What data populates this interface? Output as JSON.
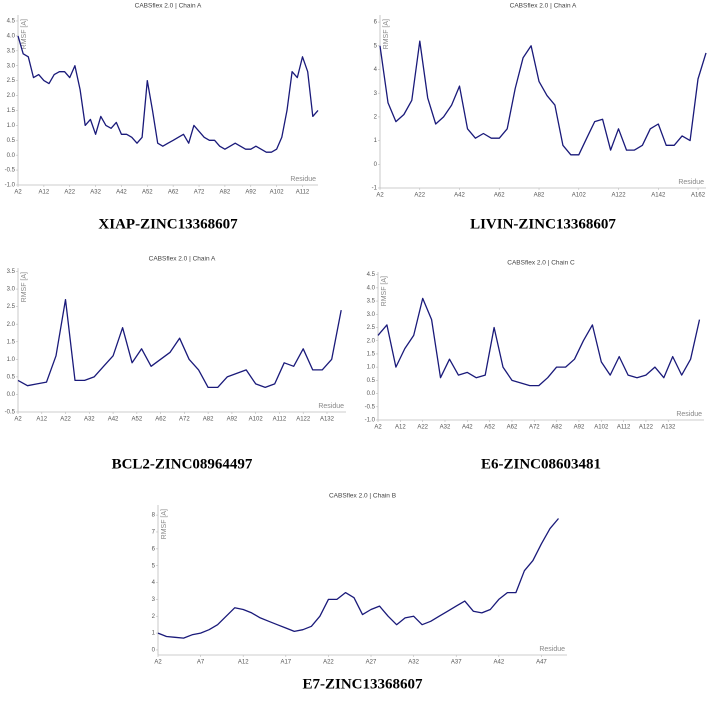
{
  "chart_data": [
    {
      "type": "line",
      "title": "CABSflex 2.0 | Chain A",
      "caption": "XIAP-ZINC13368607",
      "ylabel": "RMSF [A]",
      "xlabel": "Residue",
      "color": "#1a1a7a",
      "x": [
        2,
        4,
        6,
        8,
        10,
        12,
        14,
        16,
        18,
        20,
        22,
        24,
        26,
        28,
        30,
        32,
        34,
        36,
        38,
        40,
        42,
        44,
        46,
        48,
        50,
        52,
        54,
        56,
        58,
        60,
        62,
        64,
        66,
        68,
        70,
        72,
        74,
        76,
        78,
        80,
        82,
        84,
        86,
        88,
        90,
        92,
        94,
        96,
        98,
        100,
        102,
        104,
        106,
        108,
        110,
        112,
        114,
        116,
        118
      ],
      "values": [
        4.0,
        3.4,
        3.3,
        2.6,
        2.7,
        2.5,
        2.4,
        2.7,
        2.8,
        2.8,
        2.6,
        3.0,
        2.2,
        1.0,
        1.2,
        0.7,
        1.3,
        1.0,
        0.9,
        1.1,
        0.7,
        0.7,
        0.6,
        0.4,
        0.6,
        2.5,
        1.5,
        0.4,
        0.3,
        0.4,
        0.5,
        0.6,
        0.7,
        0.4,
        1.0,
        0.8,
        0.6,
        0.5,
        0.5,
        0.3,
        0.2,
        0.3,
        0.4,
        0.3,
        0.2,
        0.2,
        0.3,
        0.2,
        0.1,
        0.1,
        0.2,
        0.6,
        1.5,
        2.8,
        2.6,
        3.3,
        2.8,
        1.3,
        1.5
      ],
      "xlim": [
        2,
        118
      ],
      "ylim": [
        -1,
        4.7
      ],
      "xticks": [
        {
          "value": 2,
          "label": "A2"
        },
        {
          "value": 12,
          "label": "A12"
        },
        {
          "value": 22,
          "label": "A22"
        },
        {
          "value": 32,
          "label": "A32"
        },
        {
          "value": 42,
          "label": "A42"
        },
        {
          "value": 52,
          "label": "A52"
        },
        {
          "value": 62,
          "label": "A62"
        },
        {
          "value": 72,
          "label": "A72"
        },
        {
          "value": 82,
          "label": "A82"
        },
        {
          "value": 92,
          "label": "A92"
        },
        {
          "value": 102,
          "label": "A102"
        },
        {
          "value": 112,
          "label": "A112"
        }
      ],
      "yticks": [
        {
          "value": -1,
          "label": "-1.0"
        },
        -0.5,
        {
          "value": 0,
          "label": "0.0"
        },
        0.5,
        {
          "value": 1,
          "label": "1.0"
        },
        1.5,
        {
          "value": 2,
          "label": "2.0"
        },
        2.5,
        {
          "value": 3,
          "label": "3.0"
        },
        3.5,
        {
          "value": 4,
          "label": "4.0"
        },
        4.5
      ]
    },
    {
      "type": "line",
      "title": "CABSflex 2.0 | Chain A",
      "caption": "LIVIN-ZINC13368607",
      "ylabel": "RMSF [A]",
      "xlabel": "Residue",
      "color": "#1a1a7a",
      "x": [
        2,
        6,
        10,
        14,
        18,
        22,
        26,
        30,
        34,
        38,
        42,
        46,
        50,
        54,
        58,
        62,
        66,
        70,
        74,
        78,
        82,
        86,
        90,
        94,
        98,
        102,
        106,
        110,
        114,
        118,
        122,
        126,
        130,
        134,
        138,
        142,
        146,
        150,
        154,
        158,
        162,
        166
      ],
      "values": [
        5.0,
        2.6,
        1.8,
        2.1,
        2.7,
        5.2,
        2.8,
        1.7,
        2.0,
        2.5,
        3.3,
        1.5,
        1.1,
        1.3,
        1.1,
        1.1,
        1.5,
        3.2,
        4.5,
        5.0,
        3.5,
        2.9,
        2.5,
        0.8,
        0.4,
        0.4,
        1.1,
        1.8,
        1.9,
        0.6,
        1.5,
        0.6,
        0.6,
        0.8,
        1.5,
        1.7,
        0.8,
        0.8,
        1.2,
        1.0,
        3.6,
        4.7
      ],
      "xlim": [
        2,
        166
      ],
      "ylim": [
        -1,
        6.3
      ],
      "xticks": [
        {
          "value": 2,
          "label": "A2"
        },
        {
          "value": 22,
          "label": "A22"
        },
        {
          "value": 42,
          "label": "A42"
        },
        {
          "value": 62,
          "label": "A62"
        },
        {
          "value": 82,
          "label": "A82"
        },
        {
          "value": 102,
          "label": "A102"
        },
        {
          "value": 122,
          "label": "A122"
        },
        {
          "value": 142,
          "label": "A142"
        },
        {
          "value": 162,
          "label": "A162"
        }
      ],
      "yticks": [
        -1,
        0,
        1,
        2,
        3,
        4,
        5,
        6
      ]
    },
    {
      "type": "line",
      "title": "CABSflex 2.0 | Chain A",
      "caption": "BCL2-ZINC08964497",
      "ylabel": "RMSF [A]",
      "xlabel": "Residue",
      "color": "#1a1a7a",
      "x": [
        2,
        6,
        10,
        14,
        18,
        22,
        26,
        30,
        34,
        38,
        42,
        46,
        50,
        54,
        58,
        62,
        66,
        70,
        74,
        78,
        82,
        86,
        90,
        94,
        98,
        102,
        106,
        110,
        114,
        118,
        122,
        126,
        130,
        134,
        138
      ],
      "values": [
        0.4,
        0.25,
        0.3,
        0.35,
        1.1,
        2.7,
        0.4,
        0.4,
        0.5,
        0.8,
        1.1,
        1.9,
        0.9,
        1.3,
        0.8,
        1.0,
        1.2,
        1.6,
        1.0,
        0.7,
        0.2,
        0.2,
        0.5,
        0.6,
        0.7,
        0.3,
        0.2,
        0.3,
        0.9,
        0.8,
        1.3,
        0.7,
        0.7,
        1.0,
        2.4
      ],
      "xlim": [
        2,
        140
      ],
      "ylim": [
        -0.5,
        3.6
      ],
      "xticks": [
        {
          "value": 2,
          "label": "A2"
        },
        {
          "value": 12,
          "label": "A12"
        },
        {
          "value": 22,
          "label": "A22"
        },
        {
          "value": 32,
          "label": "A32"
        },
        {
          "value": 42,
          "label": "A42"
        },
        {
          "value": 52,
          "label": "A52"
        },
        {
          "value": 62,
          "label": "A62"
        },
        {
          "value": 72,
          "label": "A72"
        },
        {
          "value": 82,
          "label": "A82"
        },
        {
          "value": 92,
          "label": "A92"
        },
        {
          "value": 102,
          "label": "A102"
        },
        {
          "value": 112,
          "label": "A112"
        },
        {
          "value": 122,
          "label": "A122"
        },
        {
          "value": 132,
          "label": "A132"
        }
      ],
      "yticks": [
        -0.5,
        {
          "value": 0,
          "label": "0.0"
        },
        0.5,
        {
          "value": 1,
          "label": "1.0"
        },
        1.5,
        {
          "value": 2,
          "label": "2.0"
        },
        2.5,
        {
          "value": 3,
          "label": "3.0"
        },
        3.5
      ]
    },
    {
      "type": "line",
      "title": "CABSflex 2.0 | Chain C",
      "caption": "E6-ZINC08603481",
      "ylabel": "RMSF [A]",
      "xlabel": "Residue",
      "color": "#1a1a7a",
      "x": [
        2,
        6,
        10,
        14,
        18,
        22,
        26,
        30,
        34,
        38,
        42,
        46,
        50,
        54,
        58,
        62,
        66,
        70,
        74,
        78,
        82,
        86,
        90,
        94,
        98,
        102,
        106,
        110,
        114,
        118,
        122,
        126,
        130,
        134,
        138,
        142,
        146
      ],
      "values": [
        2.2,
        2.6,
        1.0,
        1.7,
        2.2,
        3.6,
        2.8,
        0.6,
        1.3,
        0.7,
        0.8,
        0.6,
        0.7,
        2.5,
        1.0,
        0.5,
        0.4,
        0.3,
        0.3,
        0.6,
        1.0,
        1.0,
        1.3,
        2.0,
        2.6,
        1.2,
        0.7,
        1.4,
        0.7,
        0.6,
        0.7,
        1.0,
        0.6,
        1.4,
        0.7,
        1.3,
        2.8
      ],
      "xlim": [
        2,
        148
      ],
      "ylim": [
        -1,
        4.6
      ],
      "xticks": [
        {
          "value": 2,
          "label": "A2"
        },
        {
          "value": 12,
          "label": "A12"
        },
        {
          "value": 22,
          "label": "A22"
        },
        {
          "value": 32,
          "label": "A32"
        },
        {
          "value": 42,
          "label": "A42"
        },
        {
          "value": 52,
          "label": "A52"
        },
        {
          "value": 62,
          "label": "A62"
        },
        {
          "value": 72,
          "label": "A72"
        },
        {
          "value": 82,
          "label": "A82"
        },
        {
          "value": 92,
          "label": "A92"
        },
        {
          "value": 102,
          "label": "A102"
        },
        {
          "value": 112,
          "label": "A112"
        },
        {
          "value": 122,
          "label": "A122"
        },
        {
          "value": 132,
          "label": "A132"
        }
      ],
      "yticks": [
        {
          "value": -1,
          "label": "-1.0"
        },
        -0.5,
        {
          "value": 0,
          "label": "0.0"
        },
        0.5,
        {
          "value": 1,
          "label": "1.0"
        },
        1.5,
        {
          "value": 2,
          "label": "2.0"
        },
        2.5,
        {
          "value": 3,
          "label": "3.0"
        },
        3.5,
        {
          "value": 4,
          "label": "4.0"
        },
        4.5
      ]
    },
    {
      "type": "line",
      "title": "CABSflex 2.0 | Chain B",
      "caption": "E7-ZINC13368607",
      "ylabel": "RMSF [A]",
      "xlabel": "Residue",
      "color": "#1a1a7a",
      "x": [
        2,
        3,
        4,
        5,
        6,
        7,
        8,
        9,
        10,
        11,
        12,
        13,
        14,
        15,
        16,
        17,
        18,
        19,
        20,
        21,
        22,
        23,
        24,
        25,
        26,
        27,
        28,
        29,
        30,
        31,
        32,
        33,
        34,
        35,
        36,
        37,
        38,
        39,
        40,
        41,
        42,
        43,
        44,
        45,
        46,
        47,
        48,
        49
      ],
      "values": [
        1.0,
        0.8,
        0.75,
        0.7,
        0.9,
        1.0,
        1.2,
        1.5,
        2.0,
        2.5,
        2.4,
        2.2,
        1.9,
        1.7,
        1.5,
        1.3,
        1.1,
        1.2,
        1.4,
        2.0,
        3.0,
        3.0,
        3.4,
        3.1,
        2.1,
        2.4,
        2.6,
        2.0,
        1.5,
        1.9,
        2.0,
        1.5,
        1.7,
        2.0,
        2.3,
        2.6,
        2.9,
        2.3,
        2.2,
        2.4,
        3.0,
        3.4,
        3.4,
        4.7,
        5.3,
        6.3,
        7.2,
        7.8
      ],
      "xlim": [
        2,
        50
      ],
      "ylim": [
        -0.3,
        8.6
      ],
      "xticks": [
        {
          "value": 2,
          "label": "A2"
        },
        {
          "value": 7,
          "label": "A7"
        },
        {
          "value": 12,
          "label": "A12"
        },
        {
          "value": 17,
          "label": "A17"
        },
        {
          "value": 22,
          "label": "A22"
        },
        {
          "value": 27,
          "label": "A27"
        },
        {
          "value": 32,
          "label": "A32"
        },
        {
          "value": 37,
          "label": "A37"
        },
        {
          "value": 42,
          "label": "A42"
        },
        {
          "value": 47,
          "label": "A47"
        }
      ],
      "yticks": [
        0,
        1,
        2,
        3,
        4,
        5,
        6,
        7,
        8
      ]
    }
  ]
}
